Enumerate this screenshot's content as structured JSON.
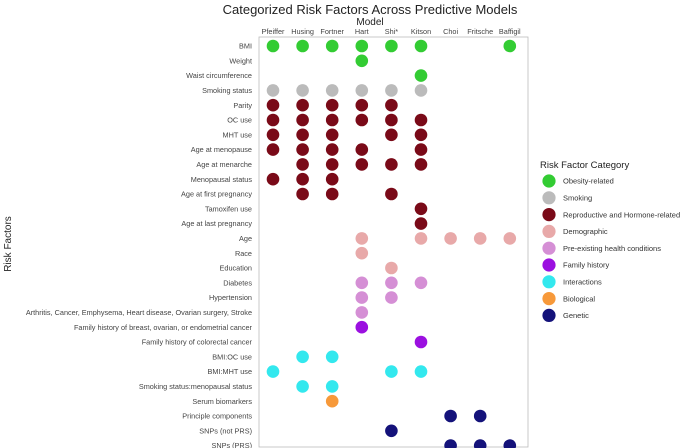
{
  "chart_data": {
    "type": "scatter",
    "title": "Categorized Risk Factors Across Predictive Models",
    "xlabel": "Model",
    "ylabel": "Risk Factors",
    "grid": false,
    "legend_position": "right",
    "legend_title": "Risk Factor Category",
    "models": [
      "Pfeiffer",
      "Husing",
      "Fortner",
      "Hart",
      "Shi*",
      "Kitson",
      "Choi",
      "Fritsche",
      "Baffigil"
    ],
    "risk_factors": [
      "BMI",
      "Weight",
      "Waist circumference",
      "Smoking status",
      "Parity",
      "OC use",
      "MHT use",
      "Age at menopause",
      "Age at menarche",
      "Menopausal status",
      "Age at first pregnancy",
      "Tamoxifen use",
      "Age at last pregnancy",
      "Age",
      "Race",
      "Education",
      "Diabetes",
      "Hypertension",
      "Arthritis, Cancer, Emphysema, Heart disease, Ovarian surgery, Stroke",
      "Family history of breast, ovarian, or endometrial cancer",
      "Family history of colorectal cancer",
      "BMI:OC use",
      "BMI:MHT use",
      "Smoking status:menopausal status",
      "Serum biomarkers",
      "Principle components",
      "SNPs (not PRS)",
      "SNPs (PRS)"
    ],
    "categories": [
      {
        "name": "Obesity-related",
        "color": "#33cc33"
      },
      {
        "name": "Smoking",
        "color": "#bbbbbb"
      },
      {
        "name": "Reproductive and Hormone-related",
        "color": "#7a0a18"
      },
      {
        "name": "Demographic",
        "color": "#e8a9a9"
      },
      {
        "name": "Pre-existing health conditions",
        "color": "#d58fd5"
      },
      {
        "name": "Family history",
        "color": "#9b10e0"
      },
      {
        "name": "Interactions",
        "color": "#33e8ee"
      },
      {
        "name": "Biological",
        "color": "#f7993a"
      },
      {
        "name": "Genetic",
        "color": "#14127a"
      }
    ],
    "points": [
      {
        "model": "Pfeiffer",
        "factor": "BMI",
        "category": "Obesity-related"
      },
      {
        "model": "Husing",
        "factor": "BMI",
        "category": "Obesity-related"
      },
      {
        "model": "Fortner",
        "factor": "BMI",
        "category": "Obesity-related"
      },
      {
        "model": "Hart",
        "factor": "BMI",
        "category": "Obesity-related"
      },
      {
        "model": "Shi*",
        "factor": "BMI",
        "category": "Obesity-related"
      },
      {
        "model": "Kitson",
        "factor": "BMI",
        "category": "Obesity-related"
      },
      {
        "model": "Baffigil",
        "factor": "BMI",
        "category": "Obesity-related"
      },
      {
        "model": "Hart",
        "factor": "Weight",
        "category": "Obesity-related"
      },
      {
        "model": "Kitson",
        "factor": "Waist circumference",
        "category": "Obesity-related"
      },
      {
        "model": "Pfeiffer",
        "factor": "Smoking status",
        "category": "Smoking"
      },
      {
        "model": "Husing",
        "factor": "Smoking status",
        "category": "Smoking"
      },
      {
        "model": "Fortner",
        "factor": "Smoking status",
        "category": "Smoking"
      },
      {
        "model": "Hart",
        "factor": "Smoking status",
        "category": "Smoking"
      },
      {
        "model": "Shi*",
        "factor": "Smoking status",
        "category": "Smoking"
      },
      {
        "model": "Kitson",
        "factor": "Smoking status",
        "category": "Smoking"
      },
      {
        "model": "Pfeiffer",
        "factor": "Parity",
        "category": "Reproductive and Hormone-related"
      },
      {
        "model": "Husing",
        "factor": "Parity",
        "category": "Reproductive and Hormone-related"
      },
      {
        "model": "Fortner",
        "factor": "Parity",
        "category": "Reproductive and Hormone-related"
      },
      {
        "model": "Hart",
        "factor": "Parity",
        "category": "Reproductive and Hormone-related"
      },
      {
        "model": "Shi*",
        "factor": "Parity",
        "category": "Reproductive and Hormone-related"
      },
      {
        "model": "Pfeiffer",
        "factor": "OC use",
        "category": "Reproductive and Hormone-related"
      },
      {
        "model": "Husing",
        "factor": "OC use",
        "category": "Reproductive and Hormone-related"
      },
      {
        "model": "Fortner",
        "factor": "OC use",
        "category": "Reproductive and Hormone-related"
      },
      {
        "model": "Hart",
        "factor": "OC use",
        "category": "Reproductive and Hormone-related"
      },
      {
        "model": "Shi*",
        "factor": "OC use",
        "category": "Reproductive and Hormone-related"
      },
      {
        "model": "Kitson",
        "factor": "OC use",
        "category": "Reproductive and Hormone-related"
      },
      {
        "model": "Pfeiffer",
        "factor": "MHT use",
        "category": "Reproductive and Hormone-related"
      },
      {
        "model": "Husing",
        "factor": "MHT use",
        "category": "Reproductive and Hormone-related"
      },
      {
        "model": "Fortner",
        "factor": "MHT use",
        "category": "Reproductive and Hormone-related"
      },
      {
        "model": "Shi*",
        "factor": "MHT use",
        "category": "Reproductive and Hormone-related"
      },
      {
        "model": "Kitson",
        "factor": "MHT use",
        "category": "Reproductive and Hormone-related"
      },
      {
        "model": "Pfeiffer",
        "factor": "Age at menopause",
        "category": "Reproductive and Hormone-related"
      },
      {
        "model": "Husing",
        "factor": "Age at menopause",
        "category": "Reproductive and Hormone-related"
      },
      {
        "model": "Fortner",
        "factor": "Age at menopause",
        "category": "Reproductive and Hormone-related"
      },
      {
        "model": "Hart",
        "factor": "Age at menopause",
        "category": "Reproductive and Hormone-related"
      },
      {
        "model": "Kitson",
        "factor": "Age at menopause",
        "category": "Reproductive and Hormone-related"
      },
      {
        "model": "Husing",
        "factor": "Age at menarche",
        "category": "Reproductive and Hormone-related"
      },
      {
        "model": "Fortner",
        "factor": "Age at menarche",
        "category": "Reproductive and Hormone-related"
      },
      {
        "model": "Hart",
        "factor": "Age at menarche",
        "category": "Reproductive and Hormone-related"
      },
      {
        "model": "Shi*",
        "factor": "Age at menarche",
        "category": "Reproductive and Hormone-related"
      },
      {
        "model": "Kitson",
        "factor": "Age at menarche",
        "category": "Reproductive and Hormone-related"
      },
      {
        "model": "Pfeiffer",
        "factor": "Menopausal status",
        "category": "Reproductive and Hormone-related"
      },
      {
        "model": "Husing",
        "factor": "Menopausal status",
        "category": "Reproductive and Hormone-related"
      },
      {
        "model": "Fortner",
        "factor": "Menopausal status",
        "category": "Reproductive and Hormone-related"
      },
      {
        "model": "Husing",
        "factor": "Age at first pregnancy",
        "category": "Reproductive and Hormone-related"
      },
      {
        "model": "Fortner",
        "factor": "Age at first pregnancy",
        "category": "Reproductive and Hormone-related"
      },
      {
        "model": "Shi*",
        "factor": "Age at first pregnancy",
        "category": "Reproductive and Hormone-related"
      },
      {
        "model": "Kitson",
        "factor": "Tamoxifen use",
        "category": "Reproductive and Hormone-related"
      },
      {
        "model": "Kitson",
        "factor": "Age at last pregnancy",
        "category": "Reproductive and Hormone-related"
      },
      {
        "model": "Hart",
        "factor": "Age",
        "category": "Demographic"
      },
      {
        "model": "Kitson",
        "factor": "Age",
        "category": "Demographic"
      },
      {
        "model": "Choi",
        "factor": "Age",
        "category": "Demographic"
      },
      {
        "model": "Fritsche",
        "factor": "Age",
        "category": "Demographic"
      },
      {
        "model": "Baffigil",
        "factor": "Age",
        "category": "Demographic"
      },
      {
        "model": "Hart",
        "factor": "Race",
        "category": "Demographic"
      },
      {
        "model": "Shi*",
        "factor": "Education",
        "category": "Demographic"
      },
      {
        "model": "Hart",
        "factor": "Diabetes",
        "category": "Pre-existing health conditions"
      },
      {
        "model": "Shi*",
        "factor": "Diabetes",
        "category": "Pre-existing health conditions"
      },
      {
        "model": "Kitson",
        "factor": "Diabetes",
        "category": "Pre-existing health conditions"
      },
      {
        "model": "Hart",
        "factor": "Hypertension",
        "category": "Pre-existing health conditions"
      },
      {
        "model": "Shi*",
        "factor": "Hypertension",
        "category": "Pre-existing health conditions"
      },
      {
        "model": "Hart",
        "factor": "Arthritis, Cancer, Emphysema, Heart disease, Ovarian surgery, Stroke",
        "category": "Pre-existing health conditions"
      },
      {
        "model": "Hart",
        "factor": "Family history of breast, ovarian, or endometrial cancer",
        "category": "Family history"
      },
      {
        "model": "Kitson",
        "factor": "Family history of colorectal cancer",
        "category": "Family history"
      },
      {
        "model": "Husing",
        "factor": "BMI:OC use",
        "category": "Interactions"
      },
      {
        "model": "Fortner",
        "factor": "BMI:OC use",
        "category": "Interactions"
      },
      {
        "model": "Pfeiffer",
        "factor": "BMI:MHT use",
        "category": "Interactions"
      },
      {
        "model": "Shi*",
        "factor": "BMI:MHT use",
        "category": "Interactions"
      },
      {
        "model": "Kitson",
        "factor": "BMI:MHT use",
        "category": "Interactions"
      },
      {
        "model": "Husing",
        "factor": "Smoking status:menopausal status",
        "category": "Interactions"
      },
      {
        "model": "Fortner",
        "factor": "Smoking status:menopausal status",
        "category": "Interactions"
      },
      {
        "model": "Fortner",
        "factor": "Serum biomarkers",
        "category": "Biological"
      },
      {
        "model": "Choi",
        "factor": "Principle components",
        "category": "Genetic"
      },
      {
        "model": "Fritsche",
        "factor": "Principle components",
        "category": "Genetic"
      },
      {
        "model": "Shi*",
        "factor": "SNPs (not PRS)",
        "category": "Genetic"
      },
      {
        "model": "Choi",
        "factor": "SNPs (PRS)",
        "category": "Genetic"
      },
      {
        "model": "Fritsche",
        "factor": "SNPs (PRS)",
        "category": "Genetic"
      },
      {
        "model": "Baffigil",
        "factor": "SNPs (PRS)",
        "category": "Genetic"
      }
    ]
  }
}
